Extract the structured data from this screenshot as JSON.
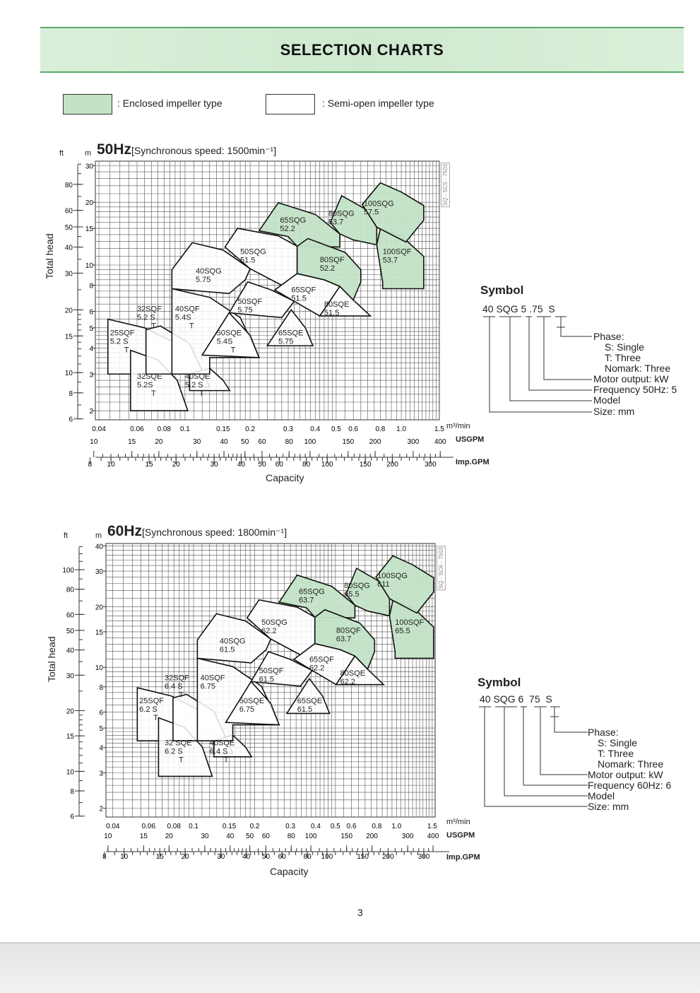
{
  "header": {
    "title": "SELECTION CHARTS"
  },
  "legend": {
    "enclosed": ": Enclosed impeller type",
    "semi_open": ": Semi-open impeller type",
    "enclosed_color": "#c3e3c6",
    "semi_open_color": "#ffffff"
  },
  "page_number": "3",
  "chart_data": [
    {
      "type": "area",
      "title_freq": "50Hz",
      "title_rest": "[Synchronous speed:  1500min⁻¹]",
      "ylabel": "Total head",
      "xlabel": "Capacity",
      "y_unit_m": "m",
      "y_unit_ft": "ft",
      "x_unit_m3": "m³/min",
      "x_unit_usgpm": "USGPM",
      "x_unit_imp": "Imp.GPM",
      "side_code": "SQ - SC5 - 7503",
      "xscale": "log",
      "yscale": "log",
      "xlim": [
        0.0385,
        1.5
      ],
      "ylim": [
        1.81,
        31.5
      ],
      "grid": true,
      "m_ticks": [
        2,
        3,
        4,
        5,
        6,
        8,
        10,
        15,
        20,
        30
      ],
      "ft_ticks": [
        6,
        8,
        10,
        15,
        20,
        30,
        40,
        50,
        60,
        80
      ],
      "x_ticks": [
        "0.04",
        "0.06",
        "0.08",
        "0.1",
        "0.15",
        "0.2",
        "0.3",
        "0.4",
        "0.5",
        "0.6",
        "0.8",
        "1.0",
        "1.5"
      ],
      "usgpm_ticks": [
        "10",
        "15",
        "20",
        "30",
        "40",
        "50",
        "60",
        "80",
        "100",
        "150",
        "200",
        "300",
        "400"
      ],
      "imp_ticks": [
        "8",
        "10",
        "15",
        "20",
        "30",
        "40",
        "50",
        "60",
        "80",
        "100",
        "150",
        "200",
        "300"
      ],
      "regions": [
        {
          "model": "25SQF",
          "code": "5.2 S",
          "sub": "T",
          "enclosed": false,
          "poly": [
            [
              0.044,
              3.0
            ],
            [
              0.044,
              5.5
            ],
            [
              0.065,
              5.0
            ],
            [
              0.087,
              4.3
            ],
            [
              0.087,
              3.0
            ]
          ],
          "lab": [
            0.045,
            4.6
          ]
        },
        {
          "model": "32SQE",
          "code": "5.2S",
          "sub": "T",
          "enclosed": false,
          "poly": [
            [
              0.056,
              2.0
            ],
            [
              0.056,
              3.9
            ],
            [
              0.075,
              3.5
            ],
            [
              0.092,
              2.8
            ],
            [
              0.103,
              2.0
            ]
          ],
          "lab": [
            0.06,
            2.85
          ]
        },
        {
          "model": "32SQF",
          "code": "5.2 S",
          "sub": "T",
          "enclosed": false,
          "poly": [
            [
              0.066,
              3.0
            ],
            [
              0.066,
              4.9
            ],
            [
              0.077,
              5.1
            ],
            [
              0.105,
              4.2
            ],
            [
              0.13,
              2.6
            ],
            [
              0.105,
              2.6
            ],
            [
              0.105,
              3.0
            ]
          ],
          "lab": [
            0.06,
            6.0
          ]
        },
        {
          "model": "40SQE",
          "code": "5.2 S",
          "sub": "T",
          "enclosed": false,
          "poly": [
            [
              0.105,
              2.5
            ],
            [
              0.105,
              3.0
            ],
            [
              0.13,
              3.2
            ],
            [
              0.15,
              2.8
            ],
            [
              0.161,
              2.5
            ]
          ],
          "lab": [
            0.1,
            2.85
          ]
        },
        {
          "model": "40SQF",
          "code": "5.4S",
          "sub": "T",
          "enclosed": false,
          "poly": [
            [
              0.087,
              3.0
            ],
            [
              0.087,
              7.7
            ],
            [
              0.13,
              7.0
            ],
            [
              0.18,
              5.6
            ],
            [
              0.22,
              3.6
            ],
            [
              0.13,
              3.6
            ],
            [
              0.13,
              3.0
            ]
          ],
          "lab": [
            0.09,
            6.0
          ]
        },
        {
          "model": "40SQG",
          "code": "5.75",
          "sub": "",
          "enclosed": false,
          "poly": [
            [
              0.087,
              7.7
            ],
            [
              0.087,
              9.5
            ],
            [
              0.108,
              12.8
            ],
            [
              0.15,
              11.8
            ],
            [
              0.2,
              9.6
            ],
            [
              0.19,
              8.5
            ],
            [
              0.16,
              7.3
            ]
          ],
          "lab": [
            0.112,
            9.1
          ]
        },
        {
          "model": "50SQE",
          "code": "5.4S",
          "sub": "T",
          "enclosed": false,
          "poly": [
            [
              0.12,
              3.7
            ],
            [
              0.16,
              5.9
            ],
            [
              0.2,
              4.6
            ],
            [
              0.22,
              3.6
            ]
          ],
          "lab": [
            0.14,
            4.6
          ]
        },
        {
          "model": "50SQF",
          "code": "5.75",
          "sub": "",
          "enclosed": false,
          "poly": [
            [
              0.16,
              5.9
            ],
            [
              0.195,
              8.3
            ],
            [
              0.25,
              7.6
            ],
            [
              0.32,
              6.7
            ],
            [
              0.28,
              5.6
            ]
          ],
          "lab": [
            0.175,
            6.5
          ]
        },
        {
          "model": "50SQG",
          "code": "51.5",
          "sub": "",
          "enclosed": false,
          "poly": [
            [
              0.153,
              12.2
            ],
            [
              0.175,
              15.0
            ],
            [
              0.27,
              13.8
            ],
            [
              0.33,
              12.3
            ],
            [
              0.33,
              9.1
            ],
            [
              0.28,
              8.0
            ],
            [
              0.2,
              9.6
            ]
          ],
          "lab": [
            0.18,
            11.3
          ]
        },
        {
          "model": "65SQE",
          "code": "5.75",
          "sub": "",
          "enclosed": false,
          "poly": [
            [
              0.24,
              4.1
            ],
            [
              0.31,
              6.1
            ],
            [
              0.36,
              5.0
            ],
            [
              0.39,
              4.1
            ]
          ],
          "lab": [
            0.27,
            4.6
          ]
        },
        {
          "model": "65SQF",
          "code": "51.5",
          "sub": "",
          "enclosed": false,
          "poly": [
            [
              0.26,
              7.6
            ],
            [
              0.33,
              9.1
            ],
            [
              0.44,
              8.5
            ],
            [
              0.52,
              7.9
            ],
            [
              0.42,
              5.7
            ],
            [
              0.32,
              6.7
            ]
          ],
          "lab": [
            0.31,
            7.4
          ]
        },
        {
          "model": "65SQG",
          "code": "52.2",
          "sub": "",
          "enclosed": true,
          "poly": [
            [
              0.22,
              14.6
            ],
            [
              0.27,
              19.9
            ],
            [
              0.4,
              17.5
            ],
            [
              0.52,
              14.1
            ],
            [
              0.52,
              12.2
            ],
            [
              0.33,
              12.3
            ],
            [
              0.3,
              13.7
            ]
          ],
          "lab": [
            0.275,
            16.0
          ]
        },
        {
          "model": "80SQE",
          "code": "51.5",
          "sub": "",
          "enclosed": false,
          "poly": [
            [
              0.42,
              5.7
            ],
            [
              0.52,
              7.9
            ],
            [
              0.6,
              6.8
            ],
            [
              0.72,
              5.7
            ]
          ],
          "lab": [
            0.44,
            6.3
          ]
        },
        {
          "model": "80SQF",
          "code": "52.2",
          "sub": "",
          "enclosed": true,
          "poly": [
            [
              0.33,
              9.1
            ],
            [
              0.33,
              12.3
            ],
            [
              0.37,
              13.4
            ],
            [
              0.55,
              11.5
            ],
            [
              0.65,
              9.5
            ],
            [
              0.65,
              8.3
            ],
            [
              0.6,
              6.8
            ],
            [
              0.52,
              7.9
            ],
            [
              0.44,
              8.5
            ]
          ],
          "lab": [
            0.42,
            10.3
          ]
        },
        {
          "model": "80SQG",
          "code": "53.7",
          "sub": "",
          "enclosed": true,
          "poly": [
            [
              0.47,
              16.0
            ],
            [
              0.53,
              21.5
            ],
            [
              0.68,
              18.6
            ],
            [
              0.77,
              15.2
            ],
            [
              0.77,
              12.5
            ],
            [
              0.6,
              13.2
            ],
            [
              0.52,
              14.1
            ]
          ],
          "lab": [
            0.46,
            17.2
          ]
        },
        {
          "model": "100SQF",
          "code": "53.7",
          "sub": "",
          "enclosed": true,
          "poly": [
            [
              0.77,
              12.5
            ],
            [
              0.8,
              14.9
            ],
            [
              1.0,
              13.8
            ],
            [
              1.27,
              11.0
            ],
            [
              1.27,
              7.7
            ],
            [
              0.82,
              7.7
            ],
            [
              0.82,
              8.3
            ]
          ],
          "lab": [
            0.82,
            11.3
          ]
        },
        {
          "model": "100SQG",
          "code": "57.5",
          "sub": "",
          "enclosed": true,
          "poly": [
            [
              0.66,
              19.5
            ],
            [
              0.8,
              24.8
            ],
            [
              1.0,
              22.4
            ],
            [
              1.27,
              19.3
            ],
            [
              1.27,
              16.4
            ],
            [
              1.05,
              12.9
            ],
            [
              0.77,
              15.2
            ]
          ],
          "lab": [
            0.67,
            19.2
          ]
        }
      ]
    },
    {
      "type": "area",
      "title_freq": "60Hz",
      "title_rest": "[Synchronous speed:  1800min⁻¹]",
      "ylabel": "Total head",
      "xlabel": "Capacity",
      "y_unit_m": "m",
      "y_unit_ft": "ft",
      "x_unit_m3": "m³/min",
      "x_unit_usgpm": "USGPM",
      "x_unit_imp": "Imp.GPM",
      "side_code": "SQ - SC6 - 7503",
      "xscale": "log",
      "yscale": "log",
      "xlim": [
        0.037,
        1.55
      ],
      "ylim": [
        1.81,
        41.1
      ],
      "grid": true,
      "affinity_scale": {
        "q": 1.2,
        "h": 1.44
      },
      "m_ticks": [
        2,
        3,
        4,
        5,
        6,
        8,
        10,
        15,
        20,
        30,
        40
      ],
      "ft_ticks": [
        6,
        8,
        10,
        15,
        20,
        30,
        40,
        50,
        60,
        80,
        100
      ],
      "x_ticks": [
        "0.04",
        "0.06",
        "0.08",
        "0.1",
        "0.15",
        "0.2",
        "0.3",
        "0.4",
        "0.5",
        "0.6",
        "0.8",
        "1.0",
        "1.5"
      ],
      "usgpm_ticks": [
        "10",
        "15",
        "20",
        "30",
        "40",
        "50",
        "60",
        "80",
        "100",
        "150",
        "200",
        "300",
        "400"
      ],
      "imp_ticks": [
        "8",
        "10",
        "15",
        "20",
        "30",
        "40",
        "50",
        "60",
        "80",
        "100",
        "150",
        "200",
        "300"
      ],
      "regions": [
        {
          "model": "25SQF",
          "code": "6.2  S",
          "sub": "T",
          "enclosed": false
        },
        {
          "model": "32 SQE",
          "code": "6.2 S",
          "sub": "T",
          "enclosed": false
        },
        {
          "model": "32SQF",
          "code": "6.4 S",
          "sub": "T",
          "enclosed": false
        },
        {
          "model": "40SQE",
          "code": "6.4 S",
          "sub": "T",
          "enclosed": false
        },
        {
          "model": "40SQF",
          "code": "6.75",
          "sub": "",
          "enclosed": false
        },
        {
          "model": "40SQG",
          "code": "61.5",
          "sub": "",
          "enclosed": false
        },
        {
          "model": "50SQE",
          "code": "6.75",
          "sub": "",
          "enclosed": false
        },
        {
          "model": "50SQF",
          "code": "61.5",
          "sub": "",
          "enclosed": false
        },
        {
          "model": "50SQG",
          "code": "62.2",
          "sub": "",
          "enclosed": false
        },
        {
          "model": "65SQE",
          "code": "61.5",
          "sub": "",
          "enclosed": false
        },
        {
          "model": "65SQF",
          "code": "62.2",
          "sub": "",
          "enclosed": false
        },
        {
          "model": "65SQG",
          "code": "63.7",
          "sub": "",
          "enclosed": true
        },
        {
          "model": "80SQE",
          "code": "62.2",
          "sub": "",
          "enclosed": false
        },
        {
          "model": "80SQF",
          "code": "63.7",
          "sub": "",
          "enclosed": true
        },
        {
          "model": "80SQG",
          "code": "65.5",
          "sub": "",
          "enclosed": true
        },
        {
          "model": "100SQF",
          "code": "65.5",
          "sub": "",
          "enclosed": true
        },
        {
          "model": "100SQG",
          "code": "611",
          "sub": "",
          "enclosed": true
        }
      ]
    }
  ],
  "symbols": [
    {
      "title": "Symbol",
      "code": "40 SQG 5 .75  S",
      "phase": "Phase:",
      "single": "S:  Single",
      "three": "T:  Three",
      "nomark": "Nomark:  Three",
      "motor": "Motor output:  kW",
      "freq": "Frequency 50Hz:  5",
      "model": "Model",
      "size": "Size:  mm"
    },
    {
      "title": "Symbol",
      "code": "40 SQG 6  75  S",
      "phase": "Phase:",
      "single": "S:  Single",
      "three": "T:  Three",
      "nomark": "Nomark:  Three",
      "motor": "Motor output:  kW",
      "freq": "Frequency 60Hz:  6",
      "model": "Model",
      "size": "Size:  mm"
    }
  ]
}
